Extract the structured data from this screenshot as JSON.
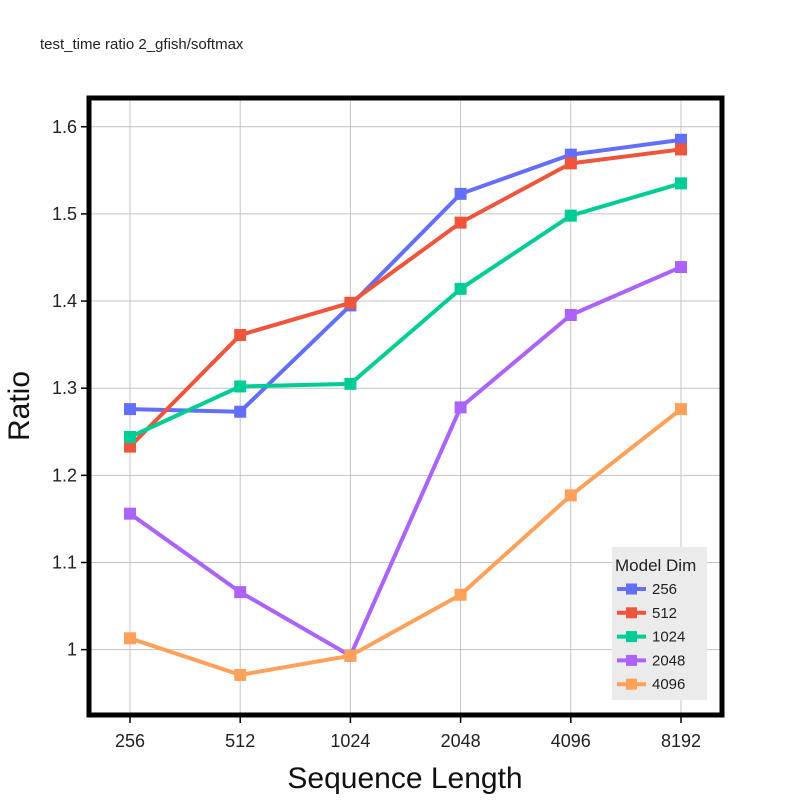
{
  "chart_data": {
    "type": "line",
    "title": "test_time ratio 2_gfish/softmax",
    "xlabel": "Sequence Length",
    "ylabel": "Ratio",
    "categories": [
      "256",
      "512",
      "1024",
      "2048",
      "4096",
      "8192"
    ],
    "y_ticks": [
      1,
      1.1,
      1.2,
      1.3,
      1.4,
      1.5,
      1.6
    ],
    "y_tick_labels": [
      "1",
      "1.1",
      "1.2",
      "1.3",
      "1.4",
      "1.5",
      "1.6"
    ],
    "ylim": [
      0.925,
      1.633
    ],
    "grid": true,
    "legend_title": "Model Dim",
    "legend_position": "bottom-right",
    "series": [
      {
        "name": "256",
        "color": "#636efa",
        "values": [
          1.276,
          1.273,
          1.395,
          1.523,
          1.568,
          1.585
        ]
      },
      {
        "name": "512",
        "color": "#ef553b",
        "values": [
          1.233,
          1.361,
          1.398,
          1.49,
          1.558,
          1.574
        ]
      },
      {
        "name": "1024",
        "color": "#00cc96",
        "values": [
          1.244,
          1.302,
          1.305,
          1.414,
          1.498,
          1.535
        ]
      },
      {
        "name": "2048",
        "color": "#ab63fa",
        "values": [
          1.156,
          1.066,
          0.993,
          1.278,
          1.384,
          1.439
        ]
      },
      {
        "name": "4096",
        "color": "#ffa15a",
        "values": [
          1.013,
          0.971,
          0.993,
          1.063,
          1.177,
          1.276
        ]
      }
    ]
  }
}
